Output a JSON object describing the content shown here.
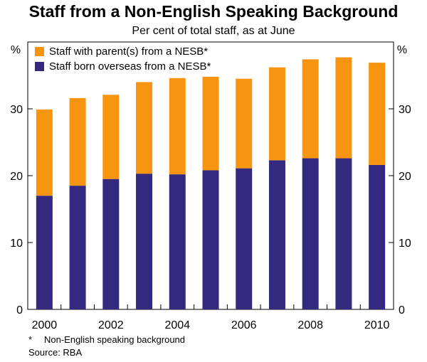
{
  "chart_data": {
    "type": "bar",
    "stacked": true,
    "title": "Staff from a Non-English Speaking Background",
    "subtitle": "Per cent of total staff, as at June",
    "y_unit_left": "%",
    "y_unit_right": "%",
    "ylim": [
      0,
      40
    ],
    "yticks": [
      0,
      10,
      20,
      30
    ],
    "categories": [
      "2000",
      "2001",
      "2002",
      "2003",
      "2004",
      "2005",
      "2006",
      "2007",
      "2008",
      "2009",
      "2010"
    ],
    "x_tick_labels": [
      "2000",
      "2002",
      "2004",
      "2006",
      "2008",
      "2010"
    ],
    "series": [
      {
        "name": "Staff born overseas from a NESB*",
        "color": "#33297e",
        "values": [
          17.0,
          18.5,
          19.5,
          20.3,
          20.2,
          20.8,
          21.1,
          22.3,
          22.6,
          22.6,
          21.6
        ]
      },
      {
        "name": "Staff with parent(s) from a NESB*",
        "color": "#f79410",
        "values": [
          12.9,
          13.1,
          12.6,
          13.7,
          14.4,
          14.0,
          13.4,
          13.9,
          14.8,
          15.1,
          15.3
        ]
      }
    ],
    "legend_order": [
      1,
      0
    ],
    "legend_position": "top-left",
    "grid": false
  },
  "footnote": {
    "mark": "*",
    "text": "Non-English speaking background"
  },
  "source": "Source: RBA"
}
